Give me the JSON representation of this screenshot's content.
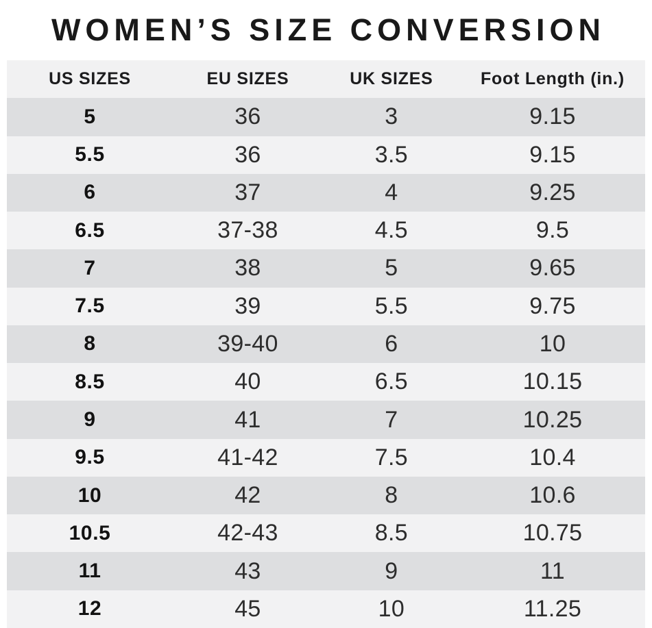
{
  "title": "WOMEN’S SIZE CONVERSION",
  "chart_data": {
    "type": "table",
    "title": "WOMEN’S SIZE CONVERSION",
    "columns": [
      "US SIZES",
      "EU SIZES",
      "UK SIZES",
      "Foot Length (in.)"
    ],
    "rows": [
      [
        "5",
        "36",
        "3",
        "9.15"
      ],
      [
        "5.5",
        "36",
        "3.5",
        "9.15"
      ],
      [
        "6",
        "37",
        "4",
        "9.25"
      ],
      [
        "6.5",
        "37-38",
        "4.5",
        "9.5"
      ],
      [
        "7",
        "38",
        "5",
        "9.65"
      ],
      [
        "7.5",
        "39",
        "5.5",
        "9.75"
      ],
      [
        "8",
        "39-40",
        "6",
        "10"
      ],
      [
        "8.5",
        "40",
        "6.5",
        "10.15"
      ],
      [
        "9",
        "41",
        "7",
        "10.25"
      ],
      [
        "9.5",
        "41-42",
        "7.5",
        "10.4"
      ],
      [
        "10",
        "42",
        "8",
        "10.6"
      ],
      [
        "10.5",
        "42-43",
        "8.5",
        "10.75"
      ],
      [
        "11",
        "43",
        "9",
        "11"
      ],
      [
        "12",
        "45",
        "10",
        "11.25"
      ]
    ]
  },
  "colors": {
    "title_text": "#191919",
    "header_bg": "#f1f1f2",
    "row_dark": "#dddee0",
    "row_light": "#f2f2f3",
    "cell_text": "#2d2d2d",
    "us_cell_text": "#121212"
  }
}
